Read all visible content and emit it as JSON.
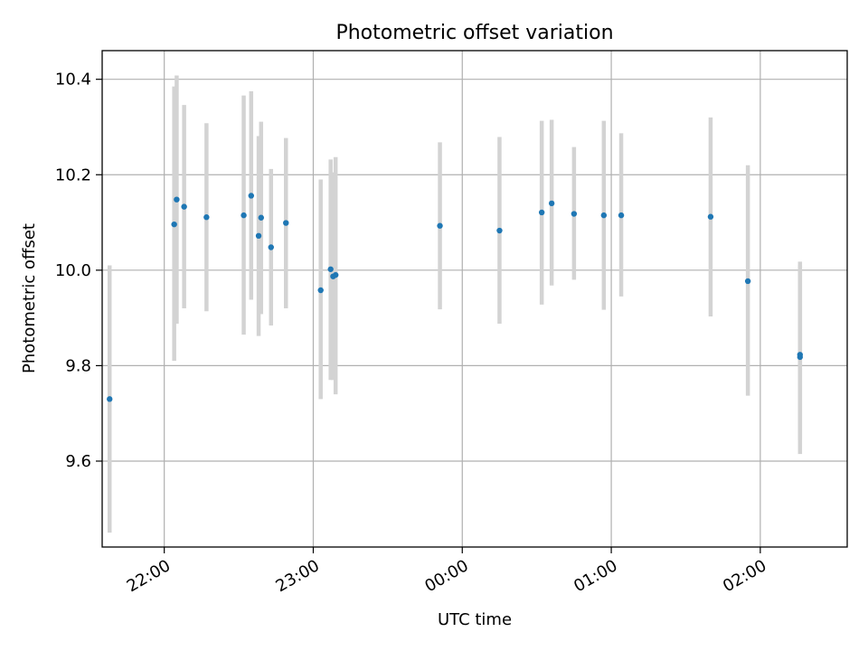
{
  "chart_data": {
    "type": "scatter",
    "title": "Photometric offset variation",
    "xlabel": "UTC time",
    "ylabel": "Photometric offset",
    "x_axis": {
      "type": "time",
      "range": [
        "21:35",
        "02:35"
      ],
      "ticks": [
        "22:00",
        "23:00",
        "00:00",
        "01:00",
        "02:00"
      ]
    },
    "y_axis": {
      "range": [
        9.42,
        10.46
      ],
      "ticks": [
        "9.6",
        "9.8",
        "10.0",
        "10.2",
        "10.4"
      ]
    },
    "grid": true,
    "colors": {
      "point": "#1f77b4",
      "errorbar": "#d3d3d3",
      "grid": "#b0b0b0"
    },
    "points": [
      {
        "x": "21:38",
        "y": 9.73,
        "ylow": 9.45,
        "yhigh": 10.01
      },
      {
        "x": "22:04",
        "y": 10.096,
        "ylow": 9.81,
        "yhigh": 10.385
      },
      {
        "x": "22:05",
        "y": 10.148,
        "ylow": 9.888,
        "yhigh": 10.408
      },
      {
        "x": "22:08",
        "y": 10.133,
        "ylow": 9.92,
        "yhigh": 10.346
      },
      {
        "x": "22:17",
        "y": 10.111,
        "ylow": 9.914,
        "yhigh": 10.308
      },
      {
        "x": "22:32",
        "y": 10.115,
        "ylow": 9.865,
        "yhigh": 10.366
      },
      {
        "x": "22:35",
        "y": 10.156,
        "ylow": 9.938,
        "yhigh": 10.375
      },
      {
        "x": "22:38",
        "y": 10.072,
        "ylow": 9.862,
        "yhigh": 10.281
      },
      {
        "x": "22:39",
        "y": 10.11,
        "ylow": 9.908,
        "yhigh": 10.311
      },
      {
        "x": "22:43",
        "y": 10.048,
        "ylow": 9.884,
        "yhigh": 10.212
      },
      {
        "x": "22:49",
        "y": 10.099,
        "ylow": 9.92,
        "yhigh": 10.277
      },
      {
        "x": "23:03",
        "y": 9.958,
        "ylow": 9.73,
        "yhigh": 10.19
      },
      {
        "x": "23:07",
        "y": 10.002,
        "ylow": 9.77,
        "yhigh": 10.232
      },
      {
        "x": "23:08",
        "y": 9.987,
        "ylow": 9.77,
        "yhigh": 10.205
      },
      {
        "x": "23:09",
        "y": 9.99,
        "ylow": 9.74,
        "yhigh": 10.237
      },
      {
        "x": "23:51",
        "y": 10.093,
        "ylow": 9.918,
        "yhigh": 10.268
      },
      {
        "x": "00:15",
        "y": 10.083,
        "ylow": 9.888,
        "yhigh": 10.279
      },
      {
        "x": "00:32",
        "y": 10.121,
        "ylow": 9.928,
        "yhigh": 10.313
      },
      {
        "x": "00:36",
        "y": 10.14,
        "ylow": 9.968,
        "yhigh": 10.315
      },
      {
        "x": "00:45",
        "y": 10.118,
        "ylow": 9.98,
        "yhigh": 10.258
      },
      {
        "x": "00:57",
        "y": 10.115,
        "ylow": 9.917,
        "yhigh": 10.313
      },
      {
        "x": "01:04",
        "y": 10.115,
        "ylow": 9.945,
        "yhigh": 10.287
      },
      {
        "x": "01:40",
        "y": 10.112,
        "ylow": 9.903,
        "yhigh": 10.32
      },
      {
        "x": "01:55",
        "y": 9.977,
        "ylow": 9.737,
        "yhigh": 10.22
      },
      {
        "x": "02:16",
        "y": 9.823,
        "ylow": 9.615,
        "yhigh": 10.018
      },
      {
        "x": "02:16",
        "y": 9.818,
        "ylow": 9.645,
        "yhigh": 10.01
      }
    ]
  }
}
